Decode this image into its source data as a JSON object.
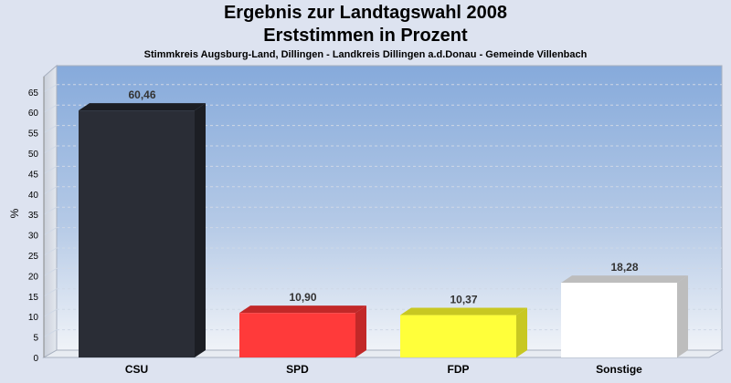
{
  "header": {
    "title_line1": "Ergebnis zur Landtagswahl 2008",
    "title_line2": "Erststimmen in Prozent",
    "subtitle": "Stimmkreis Augsburg-Land, Dillingen - Landkreis Dillingen a.d.Donau - Gemeinde Villenbach"
  },
  "chart_data": {
    "type": "bar",
    "title": "Ergebnis zur Landtagswahl 2008 Erststimmen in Prozent",
    "subtitle": "Stimmkreis Augsburg-Land, Dillingen - Landkreis Dillingen a.d.Donau - Gemeinde Villenbach",
    "xlabel": "",
    "ylabel": "%",
    "ylim": [
      0,
      70
    ],
    "yticks": [
      0,
      5,
      10,
      15,
      20,
      25,
      30,
      35,
      40,
      45,
      50,
      55,
      60,
      65
    ],
    "grid": true,
    "categories": [
      "CSU",
      "SPD",
      "FDP",
      "Sonstige"
    ],
    "values": [
      60.46,
      10.9,
      10.37,
      18.28
    ],
    "value_labels": [
      "60,46",
      "10,90",
      "10,37",
      "18,28"
    ],
    "colors": [
      "#2a2d36",
      "#ff3a3a",
      "#ffff3a",
      "#ffffff"
    ],
    "side_colors": [
      "#1c1e24",
      "#c22828",
      "#c8c822",
      "#bdbdbd"
    ]
  }
}
